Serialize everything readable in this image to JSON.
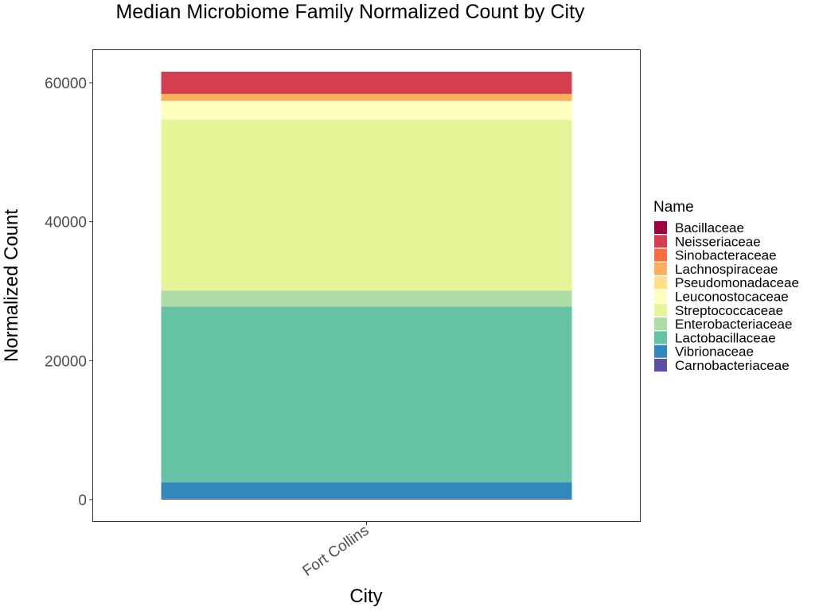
{
  "chart_data": {
    "type": "bar",
    "stacked": true,
    "title": "Median Microbiome Family Normalized Count by City",
    "xlabel": "City",
    "ylabel": "Normalized Count",
    "categories": [
      "Fort Collins"
    ],
    "ylim": [
      -3000,
      64500
    ],
    "yticks": [
      0,
      20000,
      40000,
      60000
    ],
    "ytick_labels": [
      "0",
      "20000",
      "40000",
      "60000"
    ],
    "grid": false,
    "legend": {
      "title": "Name",
      "position": "right"
    },
    "series": [
      {
        "name": "Carnobacteriaceae",
        "color": "#5E4FA2",
        "values": [
          150
        ]
      },
      {
        "name": "Vibrionaceae",
        "color": "#3288BD",
        "values": [
          2350
        ]
      },
      {
        "name": "Lactobacillaceae",
        "color": "#66C2A5",
        "values": [
          25300
        ]
      },
      {
        "name": "Enterobacteriaceae",
        "color": "#ABDDA4",
        "values": [
          2300
        ]
      },
      {
        "name": "Streptococcaceae",
        "color": "#E6F598",
        "values": [
          24600
        ]
      },
      {
        "name": "Leuconostocaceae",
        "color": "#FFFFBF",
        "values": [
          2700
        ]
      },
      {
        "name": "Pseudomonadaceae",
        "color": "#FEE08B",
        "values": [
          0
        ]
      },
      {
        "name": "Lachnospiraceae",
        "color": "#FDAE61",
        "values": [
          1000
        ]
      },
      {
        "name": "Sinobacteraceae",
        "color": "#F46D43",
        "values": [
          0
        ]
      },
      {
        "name": "Neisseriaceae",
        "color": "#D53E4F",
        "values": [
          3000
        ]
      },
      {
        "name": "Bacillaceae",
        "color": "#9E0142",
        "values": [
          150
        ]
      }
    ]
  }
}
